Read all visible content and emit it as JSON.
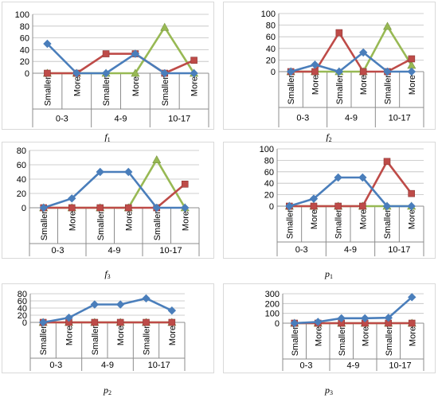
{
  "colors": {
    "s1": "#4a7ebb",
    "s2": "#be4b48",
    "s3": "#98b954"
  },
  "chart_data": [
    {
      "type": "line",
      "caption": "f1",
      "categories": [
        "Smaller",
        "More",
        "Smaller",
        "More",
        "Smaller",
        "More"
      ],
      "groups": [
        {
          "label": "0-3",
          "span": 2
        },
        {
          "label": "4-9",
          "span": 2
        },
        {
          "label": "10-17",
          "span": 2
        }
      ],
      "ylim": [
        0,
        100
      ],
      "yticks": [
        0,
        20,
        40,
        60,
        80,
        100
      ],
      "series": [
        {
          "values": [
            50,
            0,
            0,
            33,
            0,
            0
          ]
        },
        {
          "values": [
            0,
            0,
            33,
            33,
            0,
            22
          ]
        },
        {
          "values": [
            0,
            0,
            0,
            0,
            78,
            0
          ]
        }
      ]
    },
    {
      "type": "line",
      "caption": "f2",
      "categories": [
        "Smaller",
        "More",
        "Smaller",
        "More",
        "Smaller",
        "More"
      ],
      "groups": [
        {
          "label": "0-3",
          "span": 2
        },
        {
          "label": "4-9",
          "span": 2
        },
        {
          "label": "10-17",
          "span": 2
        }
      ],
      "ylim": [
        0,
        100
      ],
      "yticks": [
        0,
        20,
        40,
        60,
        80,
        100
      ],
      "series": [
        {
          "values": [
            0,
            12,
            0,
            33,
            0,
            0
          ]
        },
        {
          "values": [
            0,
            0,
            67,
            0,
            0,
            22
          ]
        },
        {
          "values": [
            0,
            0,
            0,
            0,
            78,
            11
          ]
        }
      ]
    },
    {
      "type": "line",
      "caption": "f3",
      "categories": [
        "Smaller",
        "More",
        "Smaller",
        "More",
        "Smaller",
        "More"
      ],
      "groups": [
        {
          "label": "0-3",
          "span": 2
        },
        {
          "label": "4-9",
          "span": 2
        },
        {
          "label": "10-17",
          "span": 2
        }
      ],
      "ylim": [
        0,
        80
      ],
      "yticks": [
        0,
        20,
        40,
        60,
        80
      ],
      "series": [
        {
          "values": [
            0,
            13,
            50,
            50,
            0,
            0
          ]
        },
        {
          "values": [
            0,
            0,
            0,
            0,
            0,
            33
          ]
        },
        {
          "values": [
            0,
            0,
            0,
            0,
            67,
            0
          ]
        }
      ]
    },
    {
      "type": "line",
      "caption": "p1",
      "categories": [
        "Smaller",
        "More",
        "Smaller",
        "More",
        "Smaller",
        "More"
      ],
      "groups": [
        {
          "label": "0-3",
          "span": 2
        },
        {
          "label": "4-9",
          "span": 2
        },
        {
          "label": "10-17",
          "span": 2
        }
      ],
      "ylim": [
        0,
        100
      ],
      "yticks": [
        0,
        20,
        40,
        60,
        80,
        100
      ],
      "series": [
        {
          "values": [
            0,
            13,
            50,
            50,
            0,
            0
          ]
        },
        {
          "values": [
            0,
            0,
            0,
            0,
            78,
            22
          ]
        },
        {
          "values": [
            0,
            0,
            0,
            0,
            0,
            0
          ]
        }
      ]
    },
    {
      "type": "line",
      "caption": "p2",
      "categories": [
        "Smaller",
        "More",
        "Smaller",
        "More",
        "Smaller",
        "More"
      ],
      "groups": [
        {
          "label": "0-3",
          "span": 2
        },
        {
          "label": "4-9",
          "span": 2
        },
        {
          "label": "10-17",
          "span": 2
        }
      ],
      "ylim": [
        0,
        80
      ],
      "yticks": [
        0,
        20,
        40,
        60,
        80
      ],
      "series": [
        {
          "values": [
            0,
            13,
            50,
            50,
            67,
            33
          ]
        },
        {
          "values": [
            0,
            0,
            0,
            0,
            0,
            0
          ]
        },
        {
          "values": [
            0,
            0,
            0,
            0,
            0,
            0
          ]
        }
      ]
    },
    {
      "type": "line",
      "caption": "p3",
      "categories": [
        "Smaller",
        "More",
        "Smaller",
        "More",
        "Smaller",
        "More"
      ],
      "groups": [
        {
          "label": "0-3",
          "span": 2
        },
        {
          "label": "4-9",
          "span": 2
        },
        {
          "label": "10-17",
          "span": 2
        }
      ],
      "ylim": [
        0,
        300
      ],
      "yticks": [
        0,
        100,
        200,
        300
      ],
      "series": [
        {
          "values": [
            0,
            13,
            50,
            50,
            55,
            265
          ]
        },
        {
          "values": [
            0,
            0,
            0,
            0,
            0,
            0
          ]
        },
        {
          "values": [
            0,
            0,
            0,
            0,
            0,
            0
          ]
        }
      ]
    }
  ]
}
